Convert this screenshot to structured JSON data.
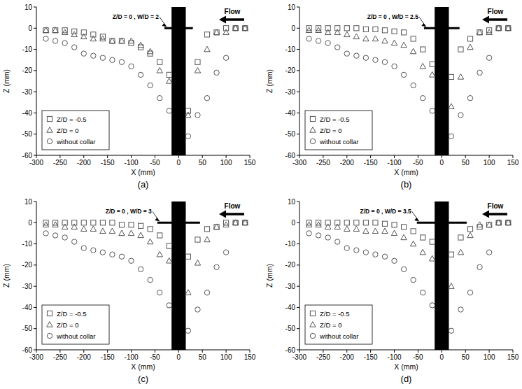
{
  "chart_data": [
    {
      "type": "scatter",
      "panel_label": "(a)",
      "annotation": "Z/D = 0 , W/D = 2",
      "flow_label": "Flow",
      "xlabel": "X (mm)",
      "ylabel": "Z (mm)",
      "legend": "lower left",
      "xlim": [
        -300,
        150
      ],
      "xticks": [
        -300,
        -250,
        -200,
        -150,
        -100,
        -50,
        0,
        50,
        100,
        150
      ],
      "ylim": [
        -60,
        10
      ],
      "yticks": [
        -60,
        -50,
        -40,
        -30,
        -20,
        -10,
        0,
        10
      ],
      "pier": [
        -15,
        15
      ],
      "collar": {
        "x": [
          -30,
          30
        ],
        "z": 0
      },
      "x": [
        -280,
        -260,
        -240,
        -220,
        -200,
        -180,
        -160,
        -140,
        -120,
        -100,
        -80,
        -60,
        -40,
        -20,
        20,
        40,
        60,
        80,
        100,
        120,
        140
      ],
      "series": [
        {
          "name": "Z/D = -0.5",
          "color": "#555555",
          "marker": "square",
          "values": [
            -1,
            -1,
            -1,
            -1.5,
            -2,
            -3,
            -4,
            -6,
            -6,
            -7,
            -9,
            -12,
            -16,
            -22,
            -39,
            -16,
            -3,
            -2,
            0,
            0,
            0
          ]
        },
        {
          "name": "Z/D = 0",
          "color": "#555555",
          "marker": "triangle",
          "values": [
            -1,
            -1,
            -2,
            -3,
            -4,
            -5,
            -5,
            -6,
            -6,
            -6,
            -8,
            -11,
            -20,
            -25,
            -41,
            -20,
            -10,
            -2,
            -2,
            0,
            0
          ]
        },
        {
          "name": "without collar",
          "color": "#555555",
          "marker": "circle",
          "values": [
            -5,
            -6,
            -7,
            -9,
            -12,
            -13,
            -14,
            -15,
            -16,
            -18,
            -22,
            -27,
            -33,
            -39,
            -51,
            -41,
            -33,
            -21,
            -14,
            0,
            0
          ]
        }
      ]
    },
    {
      "type": "scatter",
      "panel_label": "(b)",
      "annotation": "Z/D = 0 , W/D = 2.5",
      "flow_label": "Flow",
      "xlabel": "X (mm)",
      "ylabel": "Z (mm)",
      "legend": "lower left",
      "xlim": [
        -300,
        150
      ],
      "xticks": [
        -300,
        -250,
        -200,
        -150,
        -100,
        -50,
        0,
        50,
        100,
        150
      ],
      "ylim": [
        -60,
        10
      ],
      "yticks": [
        -60,
        -50,
        -40,
        -30,
        -20,
        -10,
        0,
        10
      ],
      "pier": [
        -15,
        15
      ],
      "collar": {
        "x": [
          -37.5,
          37.5
        ],
        "z": 0
      },
      "x": [
        -280,
        -260,
        -240,
        -220,
        -200,
        -180,
        -160,
        -140,
        -120,
        -100,
        -80,
        -60,
        -40,
        -20,
        20,
        40,
        60,
        80,
        100,
        120,
        140
      ],
      "series": [
        {
          "name": "Z/D = -0.5",
          "color": "#555555",
          "marker": "square",
          "values": [
            0,
            0,
            0,
            0,
            0,
            0,
            -0.5,
            -0.5,
            -1,
            -1.5,
            -2,
            -5,
            -10,
            -17,
            -23,
            -10,
            -5,
            -2,
            -1,
            0,
            0
          ]
        },
        {
          "name": "Z/D = 0",
          "color": "#555555",
          "marker": "triangle",
          "values": [
            -1,
            -1,
            -2,
            -2,
            -3,
            -4,
            -5,
            -5,
            -6,
            -7,
            -8,
            -11,
            -18,
            -22,
            -37,
            -23,
            -9,
            -2,
            -2,
            0,
            0
          ]
        },
        {
          "name": "without collar",
          "color": "#555555",
          "marker": "circle",
          "values": [
            -5,
            -6,
            -7,
            -9,
            -12,
            -13,
            -14,
            -15,
            -16,
            -18,
            -22,
            -27,
            -33,
            -39,
            -51,
            -41,
            -33,
            -21,
            -14,
            0,
            0
          ]
        }
      ]
    },
    {
      "type": "scatter",
      "panel_label": "(c)",
      "annotation": "Z/D = 0 , W/D = 3",
      "flow_label": "Flow",
      "xlabel": "X (mm)",
      "ylabel": "Z (mm)",
      "legend": "lower left",
      "xlim": [
        -300,
        150
      ],
      "xticks": [
        -300,
        -250,
        -200,
        -150,
        -100,
        -50,
        0,
        50,
        100,
        150
      ],
      "ylim": [
        -60,
        10
      ],
      "yticks": [
        -60,
        -50,
        -40,
        -30,
        -20,
        -10,
        0,
        10
      ],
      "pier": [
        -15,
        15
      ],
      "collar": {
        "x": [
          -45,
          45
        ],
        "z": 0
      },
      "x": [
        -280,
        -260,
        -240,
        -220,
        -200,
        -180,
        -160,
        -140,
        -120,
        -100,
        -80,
        -60,
        -40,
        -20,
        20,
        40,
        60,
        80,
        100,
        120,
        140
      ],
      "series": [
        {
          "name": "Z/D = -0.5",
          "color": "#555555",
          "marker": "square",
          "values": [
            0,
            0,
            0,
            0,
            0,
            0,
            0,
            0,
            -1,
            -1,
            -1.5,
            -3,
            -6,
            -11,
            -16,
            -8,
            -3,
            -2,
            0,
            0,
            0
          ]
        },
        {
          "name": "Z/D = 0",
          "color": "#555555",
          "marker": "triangle",
          "values": [
            -1,
            -1,
            -2,
            -2,
            -3,
            -3,
            -4,
            -4,
            -5,
            -5,
            -6,
            -9,
            -15,
            -18,
            -33,
            -19,
            -8,
            -2,
            -1,
            0,
            0
          ]
        },
        {
          "name": "without collar",
          "color": "#555555",
          "marker": "circle",
          "values": [
            -5,
            -6,
            -7,
            -9,
            -12,
            -13,
            -14,
            -15,
            -16,
            -18,
            -22,
            -27,
            -33,
            -39,
            -51,
            -41,
            -33,
            -21,
            -14,
            0,
            0
          ]
        }
      ]
    },
    {
      "type": "scatter",
      "panel_label": "(d)",
      "annotation": "Z/D = 0 , W/D = 3.5",
      "flow_label": "Flow",
      "xlabel": "X (mm)",
      "ylabel": "Z (mm)",
      "legend": "lower left",
      "xlim": [
        -300,
        150
      ],
      "xticks": [
        -300,
        -250,
        -200,
        -150,
        -100,
        -50,
        0,
        50,
        100,
        150
      ],
      "ylim": [
        -60,
        10
      ],
      "yticks": [
        -60,
        -50,
        -40,
        -30,
        -20,
        -10,
        0,
        10
      ],
      "pier": [
        -15,
        15
      ],
      "collar": {
        "x": [
          -52.5,
          52.5
        ],
        "z": 0
      },
      "x": [
        -280,
        -260,
        -240,
        -220,
        -200,
        -180,
        -160,
        -140,
        -120,
        -100,
        -80,
        -60,
        -40,
        -20,
        20,
        40,
        60,
        80,
        100,
        120,
        140
      ],
      "series": [
        {
          "name": "Z/D = -0.5",
          "color": "#555555",
          "marker": "square",
          "values": [
            0,
            0,
            0,
            0,
            0,
            0,
            0,
            0,
            -0.5,
            -1,
            -2,
            -4,
            -7,
            -9,
            -15,
            -7,
            -3,
            -2,
            -1,
            0,
            0
          ]
        },
        {
          "name": "Z/D = 0",
          "color": "#555555",
          "marker": "triangle",
          "values": [
            -1,
            -1,
            -2,
            -2,
            -3,
            -3,
            -4,
            -4,
            -4,
            -5,
            -7,
            -10,
            -14,
            -17,
            -30,
            -14,
            -6,
            -1,
            -1,
            0,
            0
          ]
        },
        {
          "name": "without collar",
          "color": "#555555",
          "marker": "circle",
          "values": [
            -5,
            -6,
            -7,
            -9,
            -12,
            -13,
            -14,
            -15,
            -16,
            -18,
            -22,
            -27,
            -33,
            -39,
            -51,
            -41,
            -33,
            -21,
            -14,
            0,
            0
          ]
        }
      ]
    }
  ]
}
